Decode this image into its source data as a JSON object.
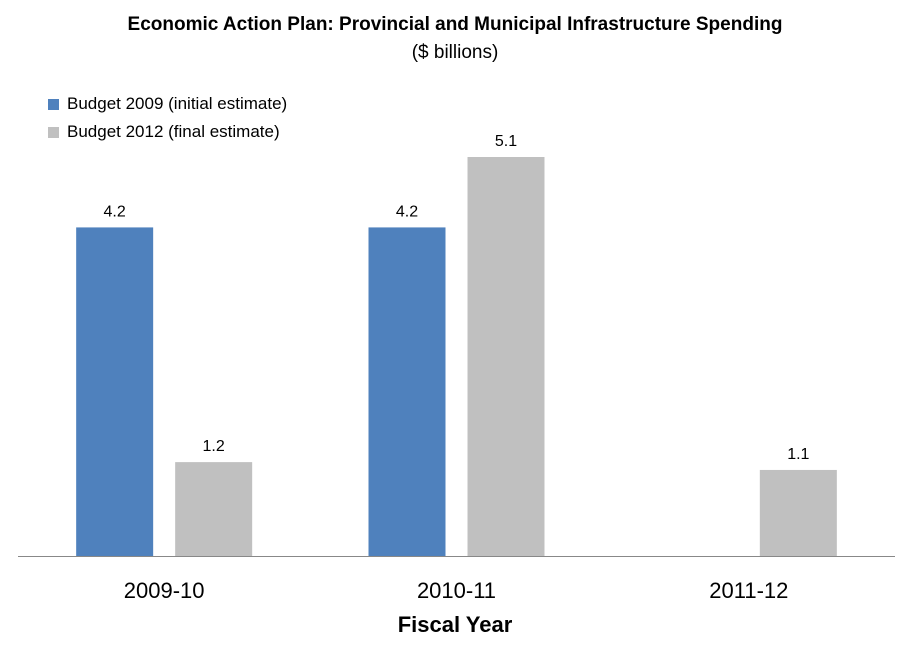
{
  "chart_data": {
    "type": "bar",
    "title": "Economic Action Plan: Provincial and Municipal Infrastructure Spending",
    "subtitle": "($ billions)",
    "xlabel": "Fiscal Year",
    "ylabel": "",
    "categories": [
      "2009-10",
      "2010-11",
      "2011-12"
    ],
    "series": [
      {
        "name": "Budget 2009 (initial estimate)",
        "color": "#4f81bd",
        "values": [
          4.2,
          4.2,
          null
        ],
        "labels": [
          "4.2",
          "4.2",
          ""
        ]
      },
      {
        "name": "Budget 2012 (final estimate)",
        "color": "#c0c0c0",
        "values": [
          1.2,
          5.1,
          1.1
        ],
        "labels": [
          "1.2",
          "5.1",
          "1.1"
        ]
      }
    ],
    "ylim": [
      0,
      5.1
    ],
    "grid": false,
    "legend": "top-left"
  }
}
